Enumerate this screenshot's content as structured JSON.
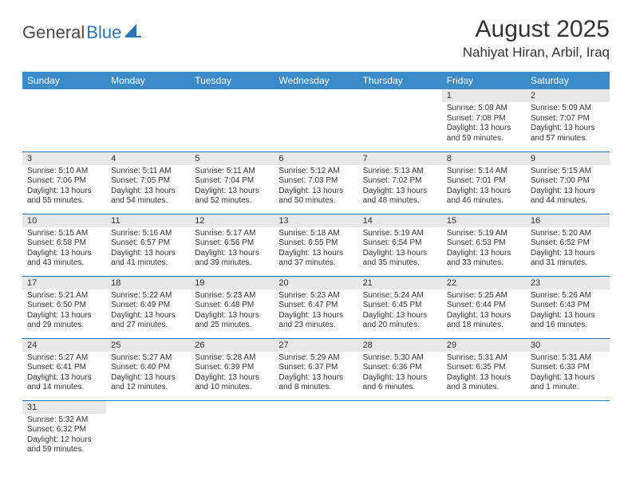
{
  "logo": {
    "general": "General",
    "blue": "Blue"
  },
  "title": "August 2025",
  "location": "Nahiyat Hiran, Arbil, Iraq",
  "colors": {
    "header_bg": "#3b8bc9",
    "header_text": "#ffffff",
    "daynum_bg": "#e8e8e8",
    "cell_border": "#2e75b6",
    "text": "#333333",
    "logo_gray": "#4a4a4a",
    "logo_blue": "#2e75b6"
  },
  "daynames": [
    "Sunday",
    "Monday",
    "Tuesday",
    "Wednesday",
    "Thursday",
    "Friday",
    "Saturday"
  ],
  "weeks": [
    [
      {
        "n": "",
        "lines": [
          "",
          "",
          "",
          ""
        ]
      },
      {
        "n": "",
        "lines": [
          "",
          "",
          "",
          ""
        ]
      },
      {
        "n": "",
        "lines": [
          "",
          "",
          "",
          ""
        ]
      },
      {
        "n": "",
        "lines": [
          "",
          "",
          "",
          ""
        ]
      },
      {
        "n": "",
        "lines": [
          "",
          "",
          "",
          ""
        ]
      },
      {
        "n": "1",
        "lines": [
          "Sunrise: 5:08 AM",
          "Sunset: 7:08 PM",
          "Daylight: 13 hours",
          "and 59 minutes."
        ]
      },
      {
        "n": "2",
        "lines": [
          "Sunrise: 5:09 AM",
          "Sunset: 7:07 PM",
          "Daylight: 13 hours",
          "and 57 minutes."
        ]
      }
    ],
    [
      {
        "n": "3",
        "lines": [
          "Sunrise: 5:10 AM",
          "Sunset: 7:06 PM",
          "Daylight: 13 hours",
          "and 55 minutes."
        ]
      },
      {
        "n": "4",
        "lines": [
          "Sunrise: 5:11 AM",
          "Sunset: 7:05 PM",
          "Daylight: 13 hours",
          "and 54 minutes."
        ]
      },
      {
        "n": "5",
        "lines": [
          "Sunrise: 5:11 AM",
          "Sunset: 7:04 PM",
          "Daylight: 13 hours",
          "and 52 minutes."
        ]
      },
      {
        "n": "6",
        "lines": [
          "Sunrise: 5:12 AM",
          "Sunset: 7:03 PM",
          "Daylight: 13 hours",
          "and 50 minutes."
        ]
      },
      {
        "n": "7",
        "lines": [
          "Sunrise: 5:13 AM",
          "Sunset: 7:02 PM",
          "Daylight: 13 hours",
          "and 48 minutes."
        ]
      },
      {
        "n": "8",
        "lines": [
          "Sunrise: 5:14 AM",
          "Sunset: 7:01 PM",
          "Daylight: 13 hours",
          "and 46 minutes."
        ]
      },
      {
        "n": "9",
        "lines": [
          "Sunrise: 5:15 AM",
          "Sunset: 7:00 PM",
          "Daylight: 13 hours",
          "and 44 minutes."
        ]
      }
    ],
    [
      {
        "n": "10",
        "lines": [
          "Sunrise: 5:15 AM",
          "Sunset: 6:58 PM",
          "Daylight: 13 hours",
          "and 43 minutes."
        ]
      },
      {
        "n": "11",
        "lines": [
          "Sunrise: 5:16 AM",
          "Sunset: 6:57 PM",
          "Daylight: 13 hours",
          "and 41 minutes."
        ]
      },
      {
        "n": "12",
        "lines": [
          "Sunrise: 5:17 AM",
          "Sunset: 6:56 PM",
          "Daylight: 13 hours",
          "and 39 minutes."
        ]
      },
      {
        "n": "13",
        "lines": [
          "Sunrise: 5:18 AM",
          "Sunset: 6:55 PM",
          "Daylight: 13 hours",
          "and 37 minutes."
        ]
      },
      {
        "n": "14",
        "lines": [
          "Sunrise: 5:19 AM",
          "Sunset: 6:54 PM",
          "Daylight: 13 hours",
          "and 35 minutes."
        ]
      },
      {
        "n": "15",
        "lines": [
          "Sunrise: 5:19 AM",
          "Sunset: 6:53 PM",
          "Daylight: 13 hours",
          "and 33 minutes."
        ]
      },
      {
        "n": "16",
        "lines": [
          "Sunrise: 5:20 AM",
          "Sunset: 6:52 PM",
          "Daylight: 13 hours",
          "and 31 minutes."
        ]
      }
    ],
    [
      {
        "n": "17",
        "lines": [
          "Sunrise: 5:21 AM",
          "Sunset: 6:50 PM",
          "Daylight: 13 hours",
          "and 29 minutes."
        ]
      },
      {
        "n": "18",
        "lines": [
          "Sunrise: 5:22 AM",
          "Sunset: 6:49 PM",
          "Daylight: 13 hours",
          "and 27 minutes."
        ]
      },
      {
        "n": "19",
        "lines": [
          "Sunrise: 5:23 AM",
          "Sunset: 6:48 PM",
          "Daylight: 13 hours",
          "and 25 minutes."
        ]
      },
      {
        "n": "20",
        "lines": [
          "Sunrise: 5:23 AM",
          "Sunset: 6:47 PM",
          "Daylight: 13 hours",
          "and 23 minutes."
        ]
      },
      {
        "n": "21",
        "lines": [
          "Sunrise: 5:24 AM",
          "Sunset: 6:45 PM",
          "Daylight: 13 hours",
          "and 20 minutes."
        ]
      },
      {
        "n": "22",
        "lines": [
          "Sunrise: 5:25 AM",
          "Sunset: 6:44 PM",
          "Daylight: 13 hours",
          "and 18 minutes."
        ]
      },
      {
        "n": "23",
        "lines": [
          "Sunrise: 5:26 AM",
          "Sunset: 6:43 PM",
          "Daylight: 13 hours",
          "and 16 minutes."
        ]
      }
    ],
    [
      {
        "n": "24",
        "lines": [
          "Sunrise: 5:27 AM",
          "Sunset: 6:41 PM",
          "Daylight: 13 hours",
          "and 14 minutes."
        ]
      },
      {
        "n": "25",
        "lines": [
          "Sunrise: 5:27 AM",
          "Sunset: 6:40 PM",
          "Daylight: 13 hours",
          "and 12 minutes."
        ]
      },
      {
        "n": "26",
        "lines": [
          "Sunrise: 5:28 AM",
          "Sunset: 6:39 PM",
          "Daylight: 13 hours",
          "and 10 minutes."
        ]
      },
      {
        "n": "27",
        "lines": [
          "Sunrise: 5:29 AM",
          "Sunset: 6:37 PM",
          "Daylight: 13 hours",
          "and 8 minutes."
        ]
      },
      {
        "n": "28",
        "lines": [
          "Sunrise: 5:30 AM",
          "Sunset: 6:36 PM",
          "Daylight: 13 hours",
          "and 6 minutes."
        ]
      },
      {
        "n": "29",
        "lines": [
          "Sunrise: 5:31 AM",
          "Sunset: 6:35 PM",
          "Daylight: 13 hours",
          "and 3 minutes."
        ]
      },
      {
        "n": "30",
        "lines": [
          "Sunrise: 5:31 AM",
          "Sunset: 6:33 PM",
          "Daylight: 13 hours",
          "and 1 minute."
        ]
      }
    ],
    [
      {
        "n": "31",
        "lines": [
          "Sunrise: 5:32 AM",
          "Sunset: 6:32 PM",
          "Daylight: 12 hours",
          "and 59 minutes."
        ]
      },
      {
        "n": "",
        "lines": [
          "",
          "",
          "",
          ""
        ]
      },
      {
        "n": "",
        "lines": [
          "",
          "",
          "",
          ""
        ]
      },
      {
        "n": "",
        "lines": [
          "",
          "",
          "",
          ""
        ]
      },
      {
        "n": "",
        "lines": [
          "",
          "",
          "",
          ""
        ]
      },
      {
        "n": "",
        "lines": [
          "",
          "",
          "",
          ""
        ]
      },
      {
        "n": "",
        "lines": [
          "",
          "",
          "",
          ""
        ]
      }
    ]
  ]
}
